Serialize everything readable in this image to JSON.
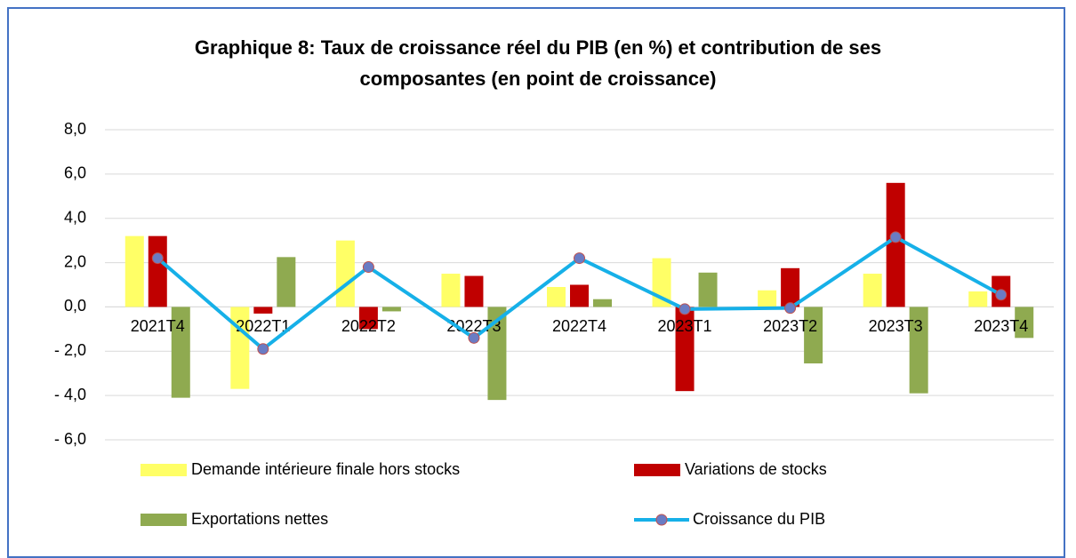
{
  "chart_data": {
    "type": "bar",
    "title": "Graphique 8: Taux de croissance réel du PIB (en %) et contribution de ses composantes (en point de croissance)",
    "categories": [
      "2021T4",
      "2022T1",
      "2022T2",
      "2022T3",
      "2022T4",
      "2023T1",
      "2023T2",
      "2023T3",
      "2023T4"
    ],
    "series": [
      {
        "name": "Demande intérieure finale hors stocks",
        "type": "bar",
        "color": "#ffff66",
        "values": [
          3.2,
          -3.7,
          3.0,
          1.5,
          0.9,
          2.2,
          0.75,
          1.5,
          0.7
        ]
      },
      {
        "name": "Variations de stocks",
        "type": "bar",
        "color": "#c00000",
        "values": [
          3.2,
          -0.3,
          -1.0,
          1.4,
          1.0,
          -3.8,
          1.75,
          5.6,
          1.4
        ]
      },
      {
        "name": "Exportations nettes",
        "type": "bar",
        "color": "#8faa50",
        "values": [
          -4.1,
          2.25,
          -0.2,
          -4.2,
          0.35,
          1.55,
          -2.55,
          -3.9,
          -1.4
        ]
      },
      {
        "name": "Croissance du PIB",
        "type": "line",
        "color": "#16b0e8",
        "marker_color": "#6a7cc4",
        "values": [
          2.2,
          -1.9,
          1.8,
          -1.4,
          2.2,
          -0.1,
          -0.05,
          3.15,
          0.55
        ]
      }
    ],
    "ylim": [
      -6,
      8
    ],
    "yticks": [
      {
        "value": 8,
        "label": "8,0"
      },
      {
        "value": 6,
        "label": "6,0"
      },
      {
        "value": 4,
        "label": "4,0"
      },
      {
        "value": 2,
        "label": "2,0"
      },
      {
        "value": 0,
        "label": "0,0"
      },
      {
        "value": -2,
        "label": "- 2,0"
      },
      {
        "value": -4,
        "label": "- 4,0"
      },
      {
        "value": -6,
        "label": "- 6,0"
      }
    ],
    "grid": true
  }
}
